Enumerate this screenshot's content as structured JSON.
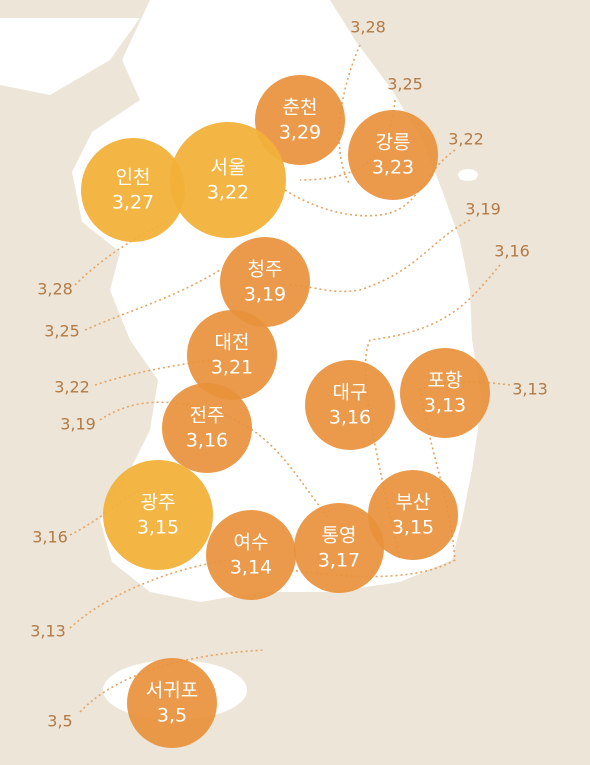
{
  "cities": [
    {
      "name": "춘천",
      "value": "3,29"
    },
    {
      "name": "강릉",
      "value": "3,23"
    },
    {
      "name": "인천",
      "value": "3,27"
    },
    {
      "name": "서울",
      "value": "3,22"
    },
    {
      "name": "청주",
      "value": "3,19"
    },
    {
      "name": "대전",
      "value": "3,21"
    },
    {
      "name": "전주",
      "value": "3,16"
    },
    {
      "name": "대구",
      "value": "3,16"
    },
    {
      "name": "포항",
      "value": "3,13"
    },
    {
      "name": "부산",
      "value": "3,15"
    },
    {
      "name": "광주",
      "value": "3,15"
    },
    {
      "name": "여수",
      "value": "3,14"
    },
    {
      "name": "통영",
      "value": "3,17"
    },
    {
      "name": "서귀포",
      "value": "3,5"
    }
  ],
  "contour_labels": [
    "3,28",
    "3,25",
    "3,22",
    "3,19",
    "3,16",
    "3,13",
    "3,28",
    "3,25",
    "3,22",
    "3,19",
    "3,16",
    "3,13",
    "3,5"
  ]
}
